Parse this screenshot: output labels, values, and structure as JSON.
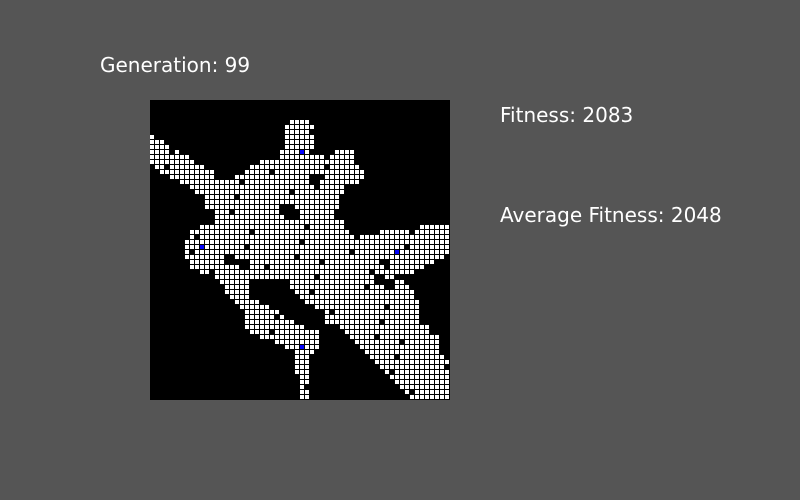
{
  "generation": {
    "label": "Generation:",
    "value": "99"
  },
  "fitness": {
    "label": "Fitness:",
    "value": "2083"
  },
  "average_fitness": {
    "label": "Average Fitness:",
    "value": "2048"
  },
  "colors": {
    "background": "#555555",
    "board": "#000000",
    "cell": "#ffffff",
    "marker": "#0000ff"
  },
  "grid": {
    "cols": 60,
    "rows": 60,
    "markers": [
      [
        30,
        10
      ],
      [
        10,
        29
      ],
      [
        49,
        30
      ],
      [
        30,
        49
      ]
    ]
  }
}
